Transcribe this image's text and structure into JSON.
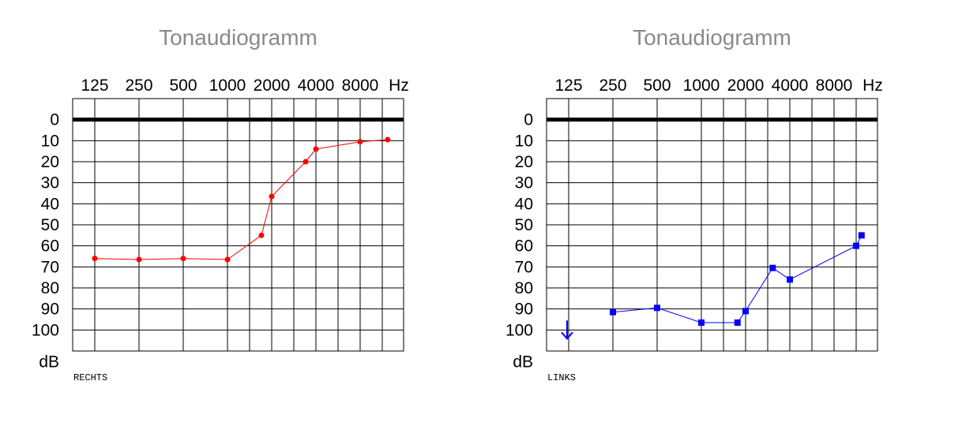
{
  "chart_data": [
    {
      "type": "line",
      "title": "Tonaudiogramm",
      "side_label": "RECHTS",
      "x_tick_labels": [
        "125",
        "250",
        "500",
        "1000",
        "2000",
        "4000",
        "8000"
      ],
      "x_unit": "Hz",
      "y_tick_labels": [
        "0",
        "10",
        "20",
        "30",
        "40",
        "50",
        "60",
        "70",
        "80",
        "90",
        "100"
      ],
      "y_unit": "dB",
      "ylim": [
        0,
        110
      ],
      "y_inverted": true,
      "grid": true,
      "series": [
        {
          "color": "#ff0000",
          "marker": "circle",
          "points": [
            {
              "x": 125,
              "y": 66
            },
            {
              "x": 250,
              "y": 66.5
            },
            {
              "x": 500,
              "y": 66
            },
            {
              "x": 1000,
              "y": 66.5
            },
            {
              "x": 1750,
              "y": 55
            },
            {
              "x": 2000,
              "y": 36.5
            },
            {
              "x": 3500,
              "y": 20
            },
            {
              "x": 4000,
              "y": 14
            },
            {
              "x": 8000,
              "y": 10.5
            },
            {
              "x": 11000,
              "y": 9.5
            }
          ]
        }
      ]
    },
    {
      "type": "line",
      "title": "Tonaudiogramm",
      "side_label": "LINKS",
      "x_tick_labels": [
        "125",
        "250",
        "500",
        "1000",
        "2000",
        "4000",
        "8000"
      ],
      "x_unit": "Hz",
      "y_tick_labels": [
        "0",
        "10",
        "20",
        "30",
        "40",
        "50",
        "60",
        "70",
        "80",
        "90",
        "100"
      ],
      "y_unit": "dB",
      "ylim": [
        0,
        110
      ],
      "y_inverted": true,
      "grid": true,
      "series": [
        {
          "color": "#0000ff",
          "marker": "square",
          "points": [
            {
              "x": 250,
              "y": 91.5
            },
            {
              "x": 500,
              "y": 89.5
            },
            {
              "x": 1000,
              "y": 96.5
            },
            {
              "x": 1800,
              "y": 96.5
            },
            {
              "x": 2000,
              "y": 91
            },
            {
              "x": 3200,
              "y": 70.5
            },
            {
              "x": 4000,
              "y": 76
            },
            {
              "x": 10000,
              "y": 60
            },
            {
              "x": 11000,
              "y": 55
            }
          ],
          "no_response": [
            {
              "x": 125,
              "y": 100
            }
          ]
        }
      ]
    }
  ]
}
